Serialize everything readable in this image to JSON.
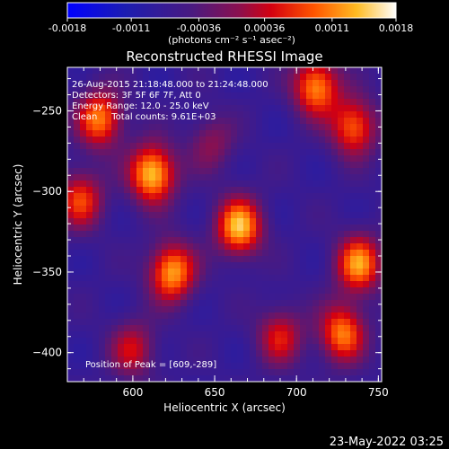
{
  "colorbar": {
    "min": -0.0018,
    "max": 0.0018,
    "tick_labels": [
      "-0.0018",
      "-0.0011",
      "-0.00036",
      "0.00036",
      "0.0011",
      "0.0018"
    ],
    "tick_values": [
      -0.0018,
      -0.0011,
      -0.00036,
      0.00036,
      0.0011,
      0.0018
    ],
    "unit_label": "(photons cm⁻² s⁻¹ asec⁻²)",
    "colormap": [
      "#0000ff",
      "#2a1f8a",
      "#5a1a7a",
      "#b0002a",
      "#ff3300",
      "#ff9900",
      "#ffee55",
      "#ffffff"
    ]
  },
  "chart_data": {
    "type": "heatmap",
    "title": "Reconstructed RHESSI Image",
    "xlabel": "Heliocentric X (arcsec)",
    "ylabel": "Heliocentric Y (arcsec)",
    "xlim": [
      560,
      752
    ],
    "ylim": [
      -418,
      -223
    ],
    "x_ticks": [
      600,
      650,
      700,
      750
    ],
    "y_ticks": [
      -250,
      -300,
      -350,
      -400
    ],
    "annotations": [
      "26-Aug-2015 21:18:48.000 to 21:24:48.000",
      "Detectors: 3F 5F 6F 7F, Att 0",
      "Energy Range: 12.0 - 25.0 keV",
      "Clean     Total counts: 9.61E+03"
    ],
    "peak_label": "Position of Peak = [609,-289]",
    "peak_position": [
      609,
      -289
    ],
    "sources": [
      {
        "x": 612,
        "y": -289,
        "peak": 1.0
      },
      {
        "x": 568,
        "y": -305,
        "peak": 0.65
      },
      {
        "x": 580,
        "y": -255,
        "peak": 0.8
      },
      {
        "x": 624,
        "y": -350,
        "peak": 0.9
      },
      {
        "x": 665,
        "y": -322,
        "peak": 0.95
      },
      {
        "x": 712,
        "y": -235,
        "peak": 0.85
      },
      {
        "x": 735,
        "y": -260,
        "peak": 0.75
      },
      {
        "x": 738,
        "y": -345,
        "peak": 0.85
      },
      {
        "x": 728,
        "y": -388,
        "peak": 0.8
      },
      {
        "x": 690,
        "y": -390,
        "peak": 0.55
      },
      {
        "x": 600,
        "y": -398,
        "peak": 0.5
      },
      {
        "x": 648,
        "y": -270,
        "peak": 0.35
      }
    ]
  },
  "footer": {
    "timestamp": "23-May-2022 03:25"
  }
}
